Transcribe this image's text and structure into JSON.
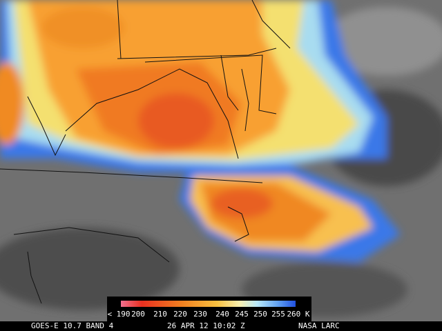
{
  "colorbar": {
    "labels": [
      "< 190",
      "200",
      "210",
      "220",
      "230",
      "240",
      "245",
      "250",
      "255",
      "260 K"
    ]
  },
  "footer": {
    "satellite": "GOES-E 10.7 BAND 4",
    "time": "26 APR 12 10:02 Z",
    "source": "NASA LARC"
  }
}
